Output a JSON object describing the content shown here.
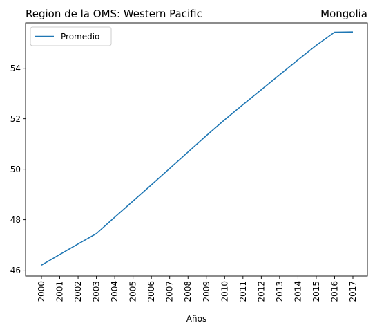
{
  "chart_data": {
    "type": "line",
    "title_left": "Region de la OMS: Western Pacific",
    "title_right": "Mongolia",
    "xlabel": "Años",
    "ylabel": "",
    "x": [
      "2000",
      "2001",
      "2002",
      "2003",
      "2004",
      "2005",
      "2006",
      "2007",
      "2008",
      "2009",
      "2010",
      "2011",
      "2012",
      "2013",
      "2014",
      "2015",
      "2016",
      "2017"
    ],
    "yticks": [
      46,
      48,
      50,
      52,
      54
    ],
    "ylim": [
      45.77,
      55.8
    ],
    "grid": false,
    "legend": {
      "placement": "top-left"
    },
    "series": [
      {
        "name": "Promedio",
        "color": "#1f77b4",
        "values": [
          46.2,
          46.62,
          47.04,
          47.45,
          48.1,
          48.74,
          49.38,
          50.03,
          50.68,
          51.33,
          51.96,
          52.56,
          53.15,
          53.74,
          54.33,
          54.91,
          55.43,
          55.44
        ]
      }
    ]
  }
}
